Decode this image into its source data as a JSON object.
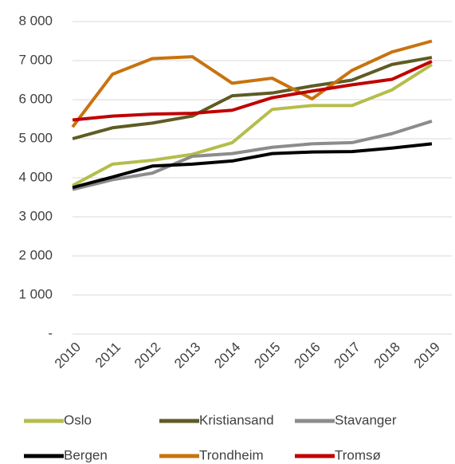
{
  "chart_data": {
    "type": "line",
    "categories": [
      "2010",
      "2011",
      "2012",
      "2013",
      "2014",
      "2015",
      "2016",
      "2017",
      "2018",
      "2019"
    ],
    "series": [
      {
        "name": "Oslo",
        "color": "#b5bd4c",
        "values": [
          3800,
          4350,
          4450,
          4600,
          4900,
          5750,
          5850,
          5850,
          6250,
          6900
        ]
      },
      {
        "name": "Kristiansand",
        "color": "#5e5b24",
        "values": [
          5000,
          5280,
          5400,
          5580,
          6100,
          6170,
          6350,
          6500,
          6900,
          7080
        ]
      },
      {
        "name": "Stavanger",
        "color": "#8c8c8c",
        "values": [
          3700,
          3950,
          4120,
          4550,
          4620,
          4780,
          4870,
          4900,
          5130,
          5450
        ]
      },
      {
        "name": "Bergen",
        "color": "#000000",
        "values": [
          3750,
          4020,
          4300,
          4350,
          4430,
          4620,
          4660,
          4670,
          4760,
          4870
        ]
      },
      {
        "name": "Trondheim",
        "color": "#c8730f",
        "values": [
          5300,
          6650,
          7050,
          7100,
          6420,
          6550,
          6020,
          6750,
          7220,
          7500
        ]
      },
      {
        "name": "Tromsø",
        "color": "#c00000",
        "values": [
          5480,
          5580,
          5630,
          5650,
          5730,
          6050,
          6220,
          6380,
          6520,
          6980
        ]
      }
    ],
    "ylim": [
      0,
      8000
    ],
    "yticks": [
      {
        "value": 0,
        "label": "-"
      },
      {
        "value": 1000,
        "label": "1 000"
      },
      {
        "value": 2000,
        "label": "2 000"
      },
      {
        "value": 3000,
        "label": "3 000"
      },
      {
        "value": 4000,
        "label": "4 000"
      },
      {
        "value": 5000,
        "label": "5 000"
      },
      {
        "value": 6000,
        "label": "6 000"
      },
      {
        "value": 7000,
        "label": "7 000"
      },
      {
        "value": 8000,
        "label": "8 000"
      }
    ],
    "grid": true,
    "legend": "bottom"
  }
}
